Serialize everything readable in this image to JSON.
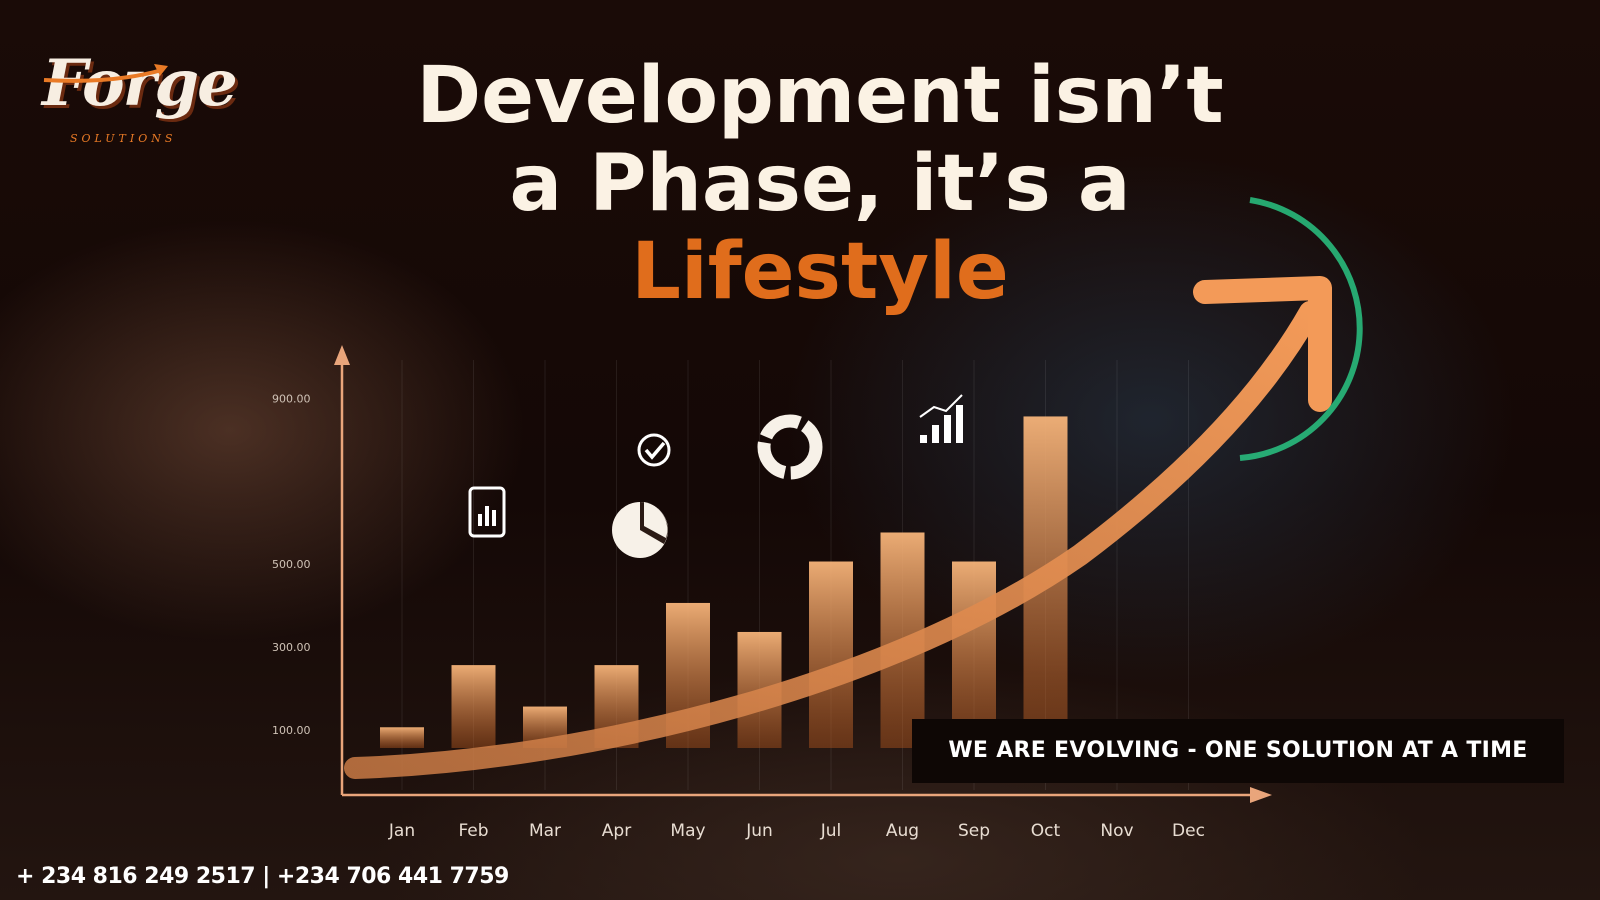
{
  "brand": {
    "logo_word": "Forge",
    "logo_sub": "SOLUTIONS",
    "accent_color": "#e06d1c"
  },
  "headline": {
    "line1": "Development isn’t",
    "line2": "a Phase, it’s a",
    "line3": "Lifestyle"
  },
  "tagline": "WE ARE EVOLVING - ONE SOLUTION AT A TIME",
  "contact": {
    "phones": "+ 234 816 249 2517 | +234 706 441 7759"
  },
  "icons": [
    "report-icon",
    "checkmark-icon",
    "pie-chart-icon",
    "donut-chart-icon",
    "bar-growth-icon",
    "trend-arrow-icon"
  ],
  "chart_data": {
    "type": "bar",
    "categories": [
      "Jan",
      "Feb",
      "Mar",
      "Apr",
      "May",
      "Jun",
      "Jul",
      "Aug",
      "Sep",
      "Oct",
      "Nov",
      "Dec"
    ],
    "values": [
      150,
      300,
      200,
      300,
      450,
      380,
      550,
      620,
      550,
      900,
      null,
      null
    ],
    "ticks": [
      {
        "value": 100,
        "label": "100.00"
      },
      {
        "value": 300,
        "label": "300.00"
      },
      {
        "value": 500,
        "label": "500.00"
      },
      {
        "value": 900,
        "label": "900.00"
      }
    ],
    "grid": true,
    "trend_arrow": true
  }
}
